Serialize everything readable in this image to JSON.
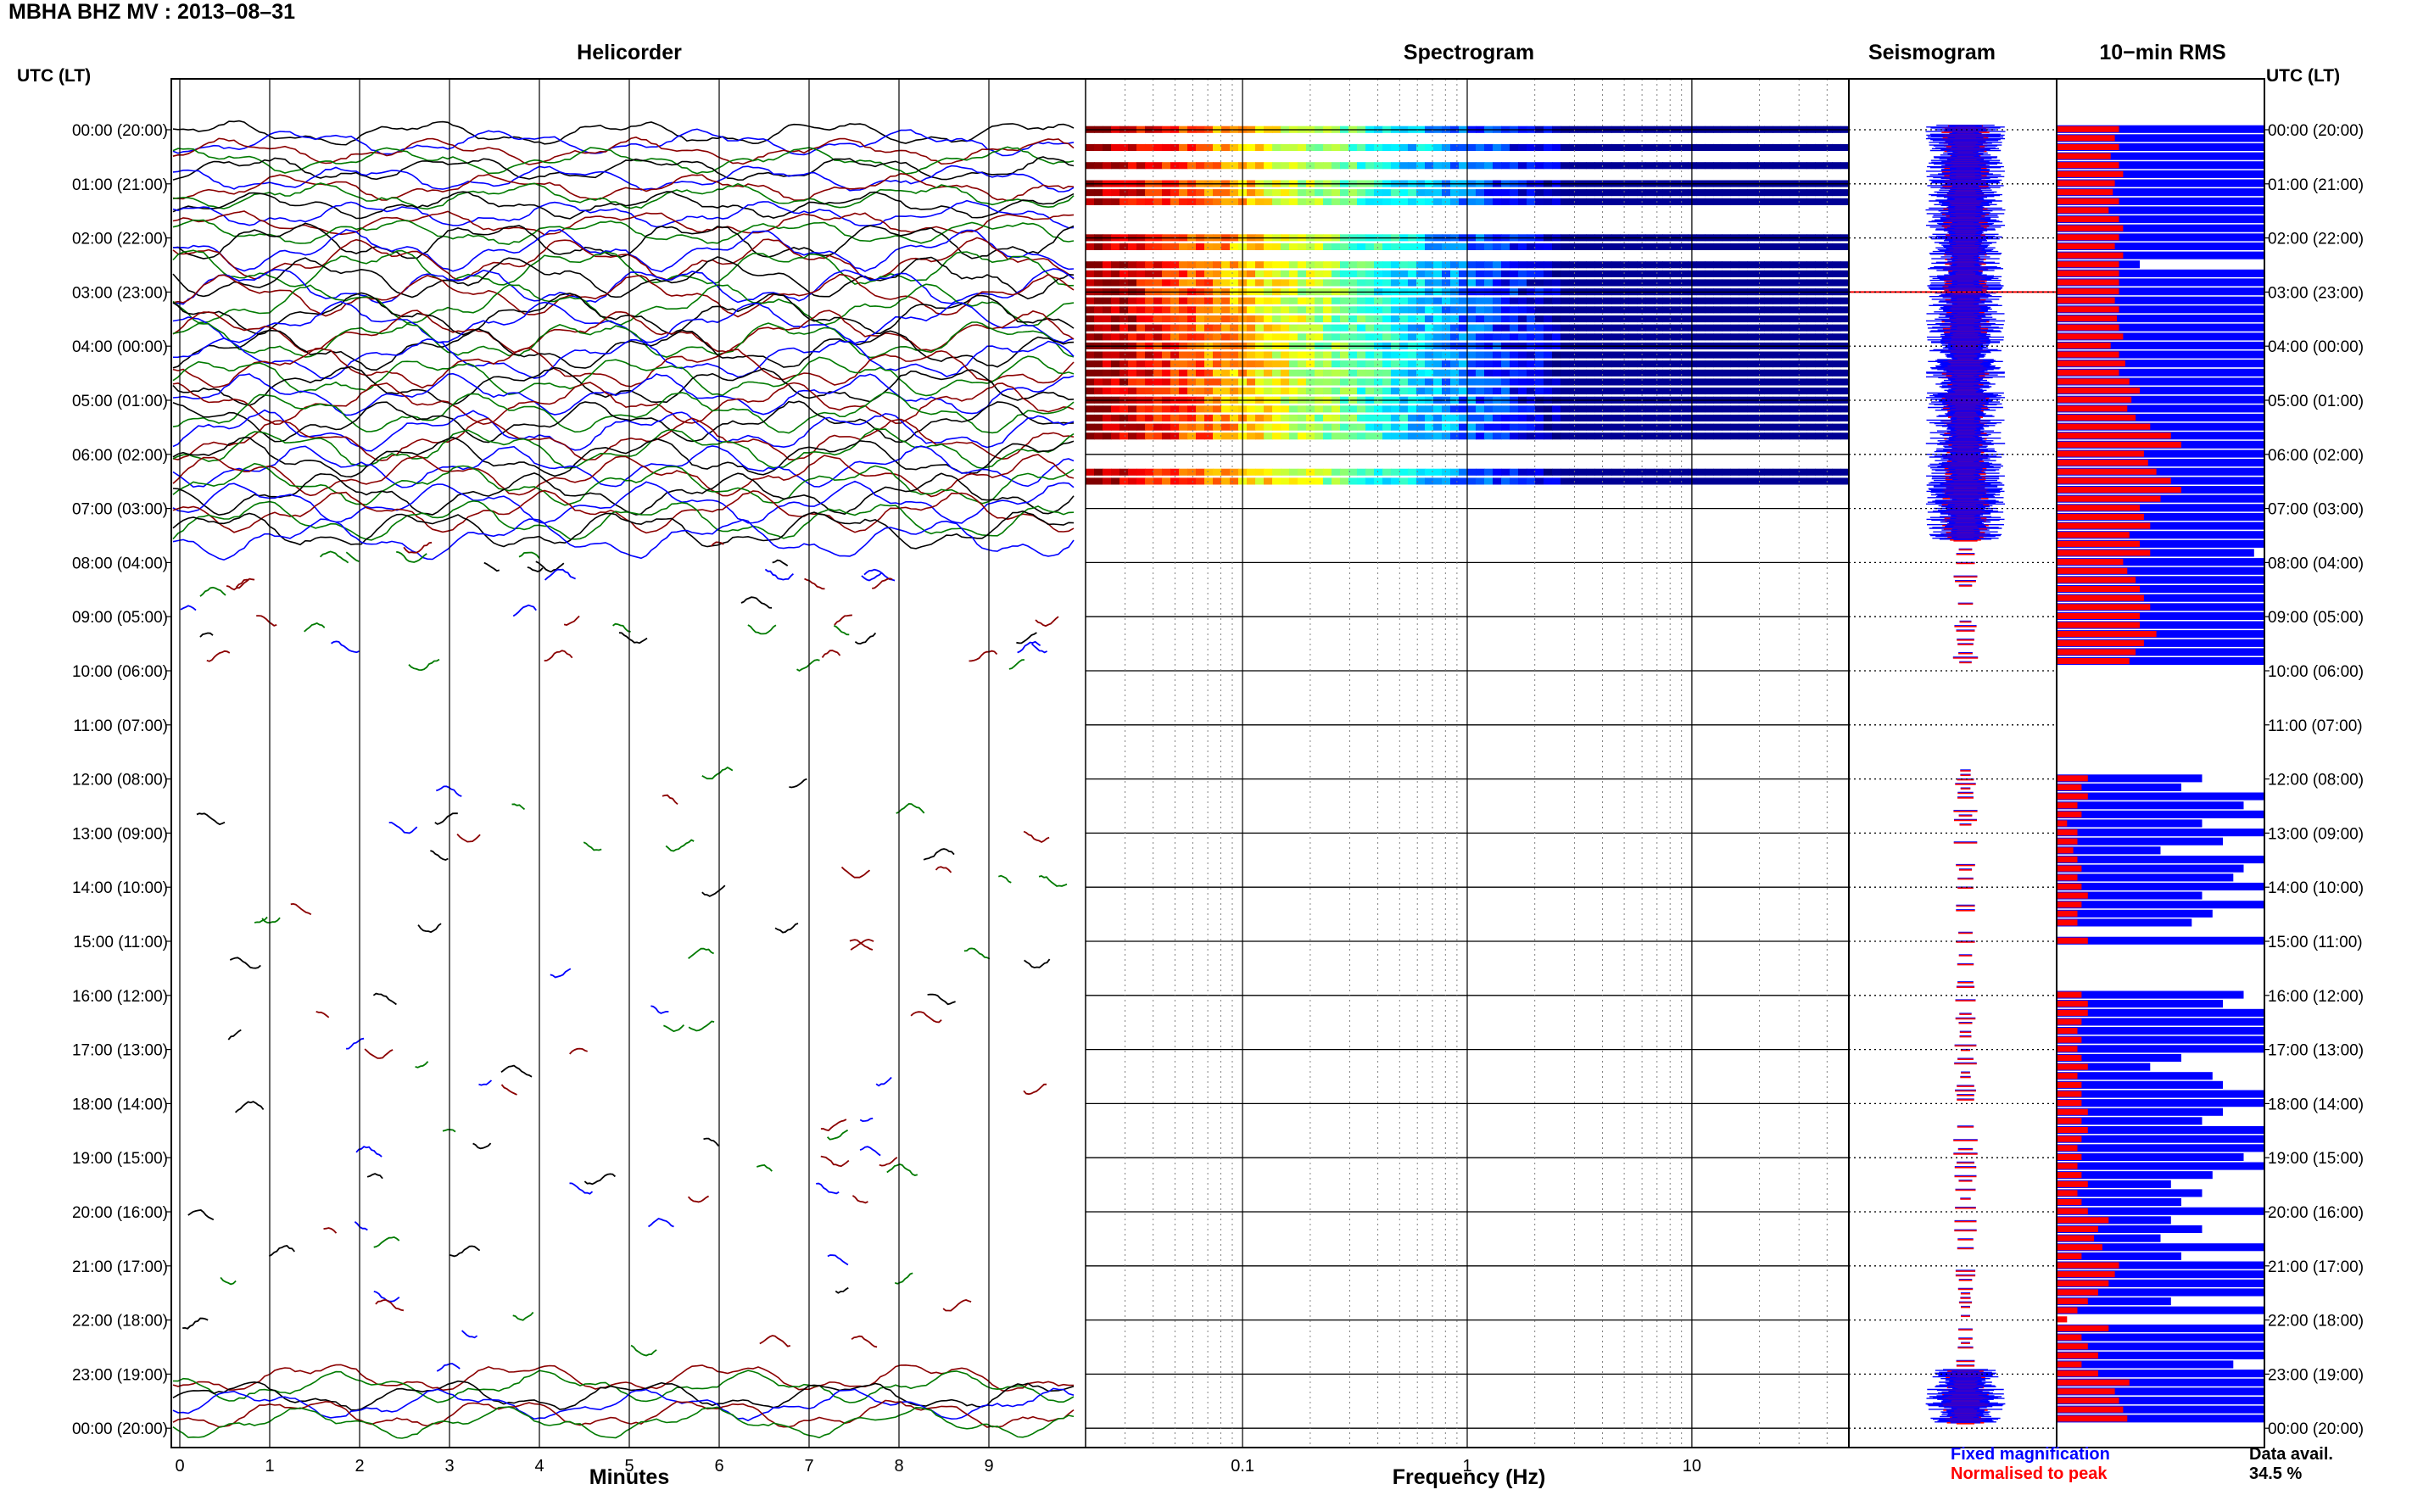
{
  "header": {
    "title": "MBHA BHZ MV : 2013–08–31",
    "utc_label_left": "UTC (LT)",
    "utc_label_right": "UTC (LT)"
  },
  "panels": {
    "helicorder": "Helicorder",
    "spectrogram": "Spectrogram",
    "seismogram": "Seismogram",
    "rms": "10−min RMS"
  },
  "legend": {
    "fixed": "Fixed magnification",
    "normalised": "Normalised to peak",
    "data_avail_label": "Data avail.",
    "data_avail_value": "34.5 %"
  },
  "axes": {
    "minutes_title": "Minutes",
    "frequency_title": "Frequency (Hz)"
  },
  "colors": {
    "fixed": "#0000ff",
    "normalised": "#ff0000",
    "trace_cycle": [
      "#000000",
      "#0000ff",
      "#8b0000",
      "#007a00"
    ],
    "spectrogram_low": "#00008b",
    "spectrogram_high": "#ff0000"
  },
  "chart_data": [
    {
      "type": "line",
      "name": "helicorder",
      "title": "Helicorder",
      "xlabel": "Minutes",
      "xlim": [
        0,
        10
      ],
      "x_ticks": [
        "0",
        "1",
        "2",
        "3",
        "4",
        "5",
        "6",
        "7",
        "8",
        "9"
      ],
      "hour_labels": [
        "00:00 (20:00)",
        "01:00 (21:00)",
        "02:00 (22:00)",
        "03:00 (23:00)",
        "04:00 (00:00)",
        "05:00 (01:00)",
        "06:00 (02:00)",
        "07:00 (03:00)",
        "08:00 (04:00)",
        "09:00 (05:00)",
        "10:00 (06:00)",
        "11:00 (07:00)",
        "12:00 (08:00)",
        "13:00 (09:00)",
        "14:00 (10:00)",
        "15:00 (11:00)",
        "16:00 (12:00)",
        "17:00 (13:00)",
        "18:00 (14:00)",
        "19:00 (15:00)",
        "20:00 (16:00)",
        "21:00 (17:00)",
        "22:00 (18:00)",
        "23:00 (19:00)",
        "00:00 (20:00)"
      ],
      "continuous_hours_utc": [
        [
          0,
          7.6
        ],
        [
          23,
          24
        ]
      ],
      "sparse_hours_utc": [
        [
          7.6,
          10
        ],
        [
          11.7,
          23
        ]
      ],
      "gap_hours_utc": [
        [
          10,
          11.7
        ]
      ]
    },
    {
      "type": "heatmap",
      "name": "spectrogram",
      "title": "Spectrogram",
      "xlabel": "Frequency (Hz)",
      "x_scale": "log",
      "xlim": [
        0.02,
        50
      ],
      "x_tick_labels": [
        "0.1",
        "1",
        "10"
      ],
      "data_hours_utc": [
        [
          0,
          6.0
        ],
        [
          6.3,
          6.6
        ]
      ],
      "colormap": "jet"
    },
    {
      "type": "line",
      "name": "seismogram",
      "title": "Seismogram",
      "series": [
        {
          "name": "Fixed magnification",
          "color": "#0000ff"
        },
        {
          "name": "Normalised to peak",
          "color": "#ff0000"
        }
      ]
    },
    {
      "type": "bar",
      "name": "rms",
      "title": "10−min RMS",
      "orientation": "horizontal",
      "bins_per_hour": 6,
      "series": [
        {
          "name": "Fixed magnification",
          "color": "#0000ff",
          "values": [
            1,
            1,
            1,
            1,
            1,
            1,
            1,
            1,
            1,
            1,
            1,
            1,
            1,
            1,
            1,
            0.4,
            1,
            1,
            1,
            1,
            1,
            1,
            1,
            1,
            1,
            1,
            1,
            1,
            1,
            1,
            1,
            1,
            1,
            1,
            1,
            1,
            1,
            1,
            1,
            1,
            1,
            1,
            1,
            1,
            1,
            1,
            1,
            0.95,
            1,
            1,
            1,
            1,
            1,
            1,
            1,
            1,
            1,
            1,
            1,
            1,
            0,
            0,
            0,
            0,
            0,
            0,
            0,
            0,
            0,
            0,
            0,
            0,
            0.7,
            0.6,
            1,
            0.9,
            1,
            0.7,
            1,
            0.8,
            0.5,
            1,
            0.9,
            0.85,
            1,
            0.7,
            1,
            0.75,
            0.65,
            0,
            1,
            0,
            0,
            0,
            0,
            0,
            0.9,
            0.8,
            1,
            1,
            1,
            1,
            1,
            0.6,
            0.45,
            0.75,
            0.8,
            1,
            1,
            0.8,
            0.7,
            1,
            1,
            1,
            0.9,
            1,
            0.75,
            0.55,
            0.7,
            0.6,
            1,
            0.55,
            0.7,
            0.5,
            1,
            0.6,
            1,
            1,
            1,
            1,
            0.55,
            1,
            0,
            1,
            1,
            1,
            1,
            0.85,
            1,
            1,
            1,
            1,
            1,
            1
          ]
        },
        {
          "name": "Normalised to peak",
          "color": "#ff0000",
          "values": [
            0.3,
            0.28,
            0.3,
            0.26,
            0.3,
            0.32,
            0.28,
            0.27,
            0.3,
            0.25,
            0.3,
            0.32,
            0.3,
            0.28,
            0.32,
            0.3,
            0.3,
            0.3,
            0.3,
            0.28,
            0.3,
            0.29,
            0.3,
            0.32,
            0.26,
            0.3,
            0.33,
            0.3,
            0.35,
            0.4,
            0.36,
            0.34,
            0.38,
            0.45,
            0.55,
            0.6,
            0.42,
            0.44,
            0.48,
            0.55,
            0.6,
            0.5,
            0.4,
            0.42,
            0.45,
            0.35,
            0.4,
            0.45,
            0.32,
            0.34,
            0.38,
            0.4,
            0.42,
            0.45,
            0.4,
            0.4,
            0.48,
            0.42,
            0.38,
            0.35,
            0,
            0,
            0,
            0,
            0,
            0,
            0,
            0,
            0,
            0,
            0,
            0,
            0.15,
            0.12,
            0.15,
            0.1,
            0.12,
            0.05,
            0.1,
            0.1,
            0.08,
            0.1,
            0.12,
            0.1,
            0.12,
            0.15,
            0.12,
            0.1,
            0.1,
            0,
            0.15,
            0,
            0,
            0,
            0,
            0,
            0.12,
            0.15,
            0.15,
            0.12,
            0.1,
            0.12,
            0.1,
            0.12,
            0.15,
            0.1,
            0.12,
            0.12,
            0.12,
            0.15,
            0.12,
            0.15,
            0.12,
            0.1,
            0.12,
            0.1,
            0.12,
            0.15,
            0.1,
            0.12,
            0.15,
            0.25,
            0.2,
            0.18,
            0.22,
            0.12,
            0.3,
            0.28,
            0.25,
            0.2,
            0.15,
            0.1,
            0.05,
            0.25,
            0.12,
            0.15,
            0.2,
            0.12,
            0.2,
            0.35,
            0.28,
            0.3,
            0.32,
            0.34
          ]
        }
      ]
    }
  ]
}
